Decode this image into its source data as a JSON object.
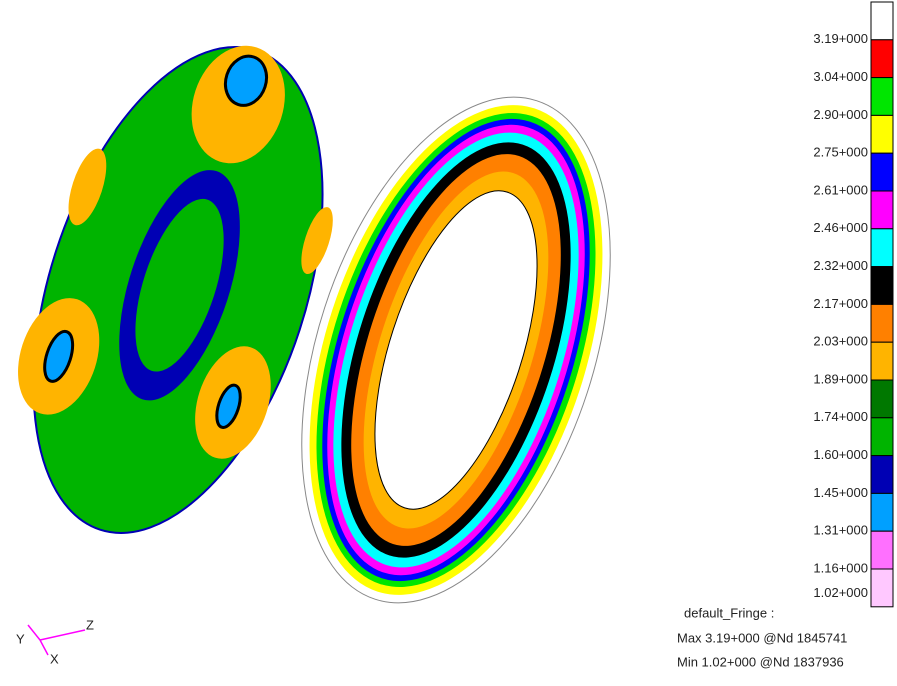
{
  "legend": {
    "labels": [
      "3.19+000",
      "3.04+000",
      "2.90+000",
      "2.75+000",
      "2.61+000",
      "2.46+000",
      "2.32+000",
      "2.17+000",
      "2.03+000",
      "1.89+000",
      "1.74+000",
      "1.60+000",
      "1.45+000",
      "1.31+000",
      "1.16+000",
      "1.02+000"
    ],
    "colors": [
      "#ffffff",
      "#ff0000",
      "#00e600",
      "#ffff00",
      "#0000ff",
      "#ff00ff",
      "#00ffff",
      "#000000",
      "#ff8000",
      "#ffb400",
      "#007800",
      "#00b400",
      "#0000b4",
      "#00a0ff",
      "#ff70ff",
      "#ffc8ff"
    ]
  },
  "summary": {
    "title": "default_Fringe :",
    "max": "Max 3.19+000 @Nd 1845741",
    "min": "Min 1.02+000 @Nd 1837936"
  },
  "triad": {
    "y": "Y",
    "z": "Z",
    "x": "X"
  }
}
